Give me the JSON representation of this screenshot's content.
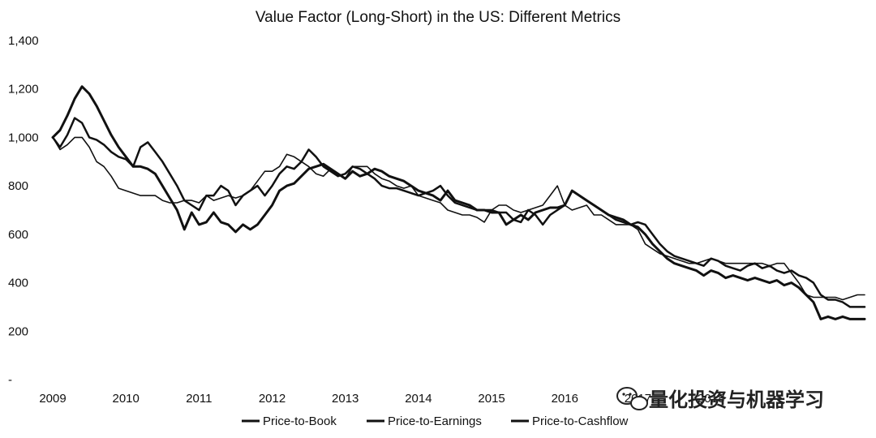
{
  "chart_data": {
    "type": "line",
    "title": "Value Factor (Long-Short) in the US: Different Metrics",
    "xlabel": "",
    "ylabel": "",
    "xlim": [
      2009,
      2020.1
    ],
    "ylim": [
      0,
      1400
    ],
    "yticks": [
      0,
      200,
      400,
      600,
      800,
      1000,
      1200,
      1400
    ],
    "ytick_labels": [
      "-",
      "200",
      "400",
      "600",
      "800",
      "1,000",
      "1,200",
      "1,400"
    ],
    "xticks": [
      2009,
      2010,
      2011,
      2012,
      2013,
      2014,
      2015,
      2016,
      2017,
      2018
    ],
    "xtick_labels": [
      "2009",
      "2010",
      "2011",
      "2012",
      "2013",
      "2014",
      "2015",
      "2016",
      "2017",
      "2018"
    ],
    "grid": false,
    "legend": "bottom",
    "series": [
      {
        "name": "Price-to-Book",
        "color": "#111111",
        "x": [
          2009,
          2009.1,
          2009.2,
          2009.3,
          2009.4,
          2009.5,
          2009.6,
          2009.7,
          2009.8,
          2009.9,
          2010,
          2010.1,
          2010.2,
          2010.3,
          2010.4,
          2010.5,
          2010.6,
          2010.7,
          2010.8,
          2010.9,
          2011,
          2011.1,
          2011.2,
          2011.3,
          2011.4,
          2011.5,
          2011.6,
          2011.7,
          2011.8,
          2011.9,
          2012,
          2012.1,
          2012.2,
          2012.3,
          2012.4,
          2012.5,
          2012.6,
          2012.7,
          2012.8,
          2012.9,
          2013,
          2013.1,
          2013.2,
          2013.3,
          2013.4,
          2013.5,
          2013.6,
          2013.7,
          2013.8,
          2013.9,
          2014,
          2014.1,
          2014.2,
          2014.3,
          2014.4,
          2014.5,
          2014.6,
          2014.7,
          2014.8,
          2014.9,
          2015,
          2015.1,
          2015.2,
          2015.3,
          2015.4,
          2015.5,
          2015.6,
          2015.7,
          2015.8,
          2015.9,
          2016,
          2016.1,
          2016.2,
          2016.3,
          2016.4,
          2016.5,
          2016.6,
          2016.7,
          2016.8,
          2016.9,
          2017,
          2017.1,
          2017.2,
          2017.3,
          2017.4,
          2017.5,
          2017.6,
          2017.7,
          2017.8,
          2017.9,
          2018,
          2018.1,
          2018.2,
          2018.3,
          2018.4,
          2018.5,
          2018.6,
          2018.7,
          2018.8,
          2018.9,
          2019,
          2019.1,
          2019.2,
          2019.3,
          2019.4,
          2019.5,
          2019.6,
          2019.7,
          2019.8,
          2019.9,
          2020,
          2020.1
        ],
        "values": [
          1000,
          1030,
          1090,
          1160,
          1210,
          1180,
          1130,
          1070,
          1010,
          960,
          920,
          880,
          880,
          870,
          850,
          800,
          750,
          700,
          620,
          690,
          640,
          650,
          690,
          650,
          640,
          610,
          640,
          620,
          640,
          680,
          720,
          780,
          800,
          810,
          840,
          870,
          880,
          890,
          870,
          850,
          830,
          860,
          840,
          850,
          870,
          860,
          840,
          830,
          820,
          800,
          780,
          770,
          760,
          740,
          780,
          740,
          730,
          720,
          700,
          700,
          690,
          690,
          640,
          660,
          680,
          660,
          690,
          700,
          710,
          710,
          720,
          780,
          760,
          740,
          720,
          700,
          680,
          670,
          660,
          640,
          630,
          600,
          560,
          530,
          500,
          480,
          470,
          460,
          450,
          430,
          450,
          440,
          420,
          430,
          420,
          410,
          420,
          410,
          400,
          410,
          390,
          400,
          380,
          350,
          320,
          250,
          260,
          250,
          260,
          250,
          250,
          250
        ]
      },
      {
        "name": "Price-to-Earnings",
        "color": "#111111",
        "x": [
          2009,
          2009.1,
          2009.2,
          2009.3,
          2009.4,
          2009.5,
          2009.6,
          2009.7,
          2009.8,
          2009.9,
          2010,
          2010.1,
          2010.2,
          2010.3,
          2010.4,
          2010.5,
          2010.6,
          2010.7,
          2010.8,
          2010.9,
          2011,
          2011.1,
          2011.2,
          2011.3,
          2011.4,
          2011.5,
          2011.6,
          2011.7,
          2011.8,
          2011.9,
          2012,
          2012.1,
          2012.2,
          2012.3,
          2012.4,
          2012.5,
          2012.6,
          2012.7,
          2012.8,
          2012.9,
          2013,
          2013.1,
          2013.2,
          2013.3,
          2013.4,
          2013.5,
          2013.6,
          2013.7,
          2013.8,
          2013.9,
          2014,
          2014.1,
          2014.2,
          2014.3,
          2014.4,
          2014.5,
          2014.6,
          2014.7,
          2014.8,
          2014.9,
          2015,
          2015.1,
          2015.2,
          2015.3,
          2015.4,
          2015.5,
          2015.6,
          2015.7,
          2015.8,
          2015.9,
          2016,
          2016.1,
          2016.2,
          2016.3,
          2016.4,
          2016.5,
          2016.6,
          2016.7,
          2016.8,
          2016.9,
          2017,
          2017.1,
          2017.2,
          2017.3,
          2017.4,
          2017.5,
          2017.6,
          2017.7,
          2017.8,
          2017.9,
          2018,
          2018.1,
          2018.2,
          2018.3,
          2018.4,
          2018.5,
          2018.6,
          2018.7,
          2018.8,
          2018.9,
          2019,
          2019.1,
          2019.2,
          2019.3,
          2019.4,
          2019.5,
          2019.6,
          2019.7,
          2019.8,
          2019.9,
          2020,
          2020.1
        ],
        "values": [
          1000,
          960,
          1010,
          1080,
          1060,
          1000,
          990,
          970,
          940,
          920,
          910,
          880,
          960,
          980,
          940,
          900,
          850,
          800,
          740,
          720,
          700,
          760,
          760,
          800,
          780,
          720,
          760,
          780,
          800,
          760,
          800,
          850,
          880,
          870,
          900,
          950,
          920,
          880,
          860,
          840,
          850,
          880,
          870,
          850,
          830,
          800,
          790,
          790,
          780,
          770,
          760,
          770,
          780,
          800,
          760,
          730,
          720,
          710,
          700,
          700,
          700,
          690,
          690,
          660,
          650,
          700,
          680,
          640,
          680,
          700,
          720,
          780,
          760,
          740,
          720,
          700,
          680,
          660,
          650,
          640,
          650,
          640,
          600,
          560,
          530,
          510,
          500,
          490,
          480,
          470,
          500,
          490,
          470,
          460,
          450,
          470,
          480,
          460,
          470,
          450,
          440,
          450,
          430,
          420,
          400,
          350,
          330,
          330,
          320,
          300,
          300,
          300
        ]
      },
      {
        "name": "Price-to-Cashflow",
        "color": "#111111",
        "x": [
          2009,
          2009.1,
          2009.2,
          2009.3,
          2009.4,
          2009.5,
          2009.6,
          2009.7,
          2009.8,
          2009.9,
          2010,
          2010.1,
          2010.2,
          2010.3,
          2010.4,
          2010.5,
          2010.6,
          2010.7,
          2010.8,
          2010.9,
          2011,
          2011.1,
          2011.2,
          2011.3,
          2011.4,
          2011.5,
          2011.6,
          2011.7,
          2011.8,
          2011.9,
          2012,
          2012.1,
          2012.2,
          2012.3,
          2012.4,
          2012.5,
          2012.6,
          2012.7,
          2012.8,
          2012.9,
          2013,
          2013.1,
          2013.2,
          2013.3,
          2013.4,
          2013.5,
          2013.6,
          2013.7,
          2013.8,
          2013.9,
          2014,
          2014.1,
          2014.2,
          2014.3,
          2014.4,
          2014.5,
          2014.6,
          2014.7,
          2014.8,
          2014.9,
          2015,
          2015.1,
          2015.2,
          2015.3,
          2015.4,
          2015.5,
          2015.6,
          2015.7,
          2015.8,
          2015.9,
          2016,
          2016.1,
          2016.2,
          2016.3,
          2016.4,
          2016.5,
          2016.6,
          2016.7,
          2016.8,
          2016.9,
          2017,
          2017.1,
          2017.2,
          2017.3,
          2017.4,
          2017.5,
          2017.6,
          2017.7,
          2017.8,
          2017.9,
          2018,
          2018.1,
          2018.2,
          2018.3,
          2018.4,
          2018.5,
          2018.6,
          2018.7,
          2018.8,
          2018.9,
          2019,
          2019.1,
          2019.2,
          2019.3,
          2019.4,
          2019.5,
          2019.6,
          2019.7,
          2019.8,
          2019.9,
          2020,
          2020.1
        ],
        "values": [
          1000,
          950,
          970,
          1000,
          1000,
          960,
          900,
          880,
          840,
          790,
          780,
          770,
          760,
          760,
          760,
          740,
          730,
          730,
          740,
          740,
          730,
          760,
          740,
          750,
          760,
          750,
          760,
          780,
          820,
          860,
          860,
          880,
          930,
          920,
          900,
          880,
          850,
          840,
          870,
          850,
          830,
          880,
          880,
          880,
          850,
          830,
          820,
          800,
          790,
          800,
          760,
          750,
          740,
          730,
          700,
          690,
          680,
          680,
          670,
          650,
          700,
          720,
          720,
          700,
          690,
          700,
          710,
          720,
          760,
          800,
          720,
          700,
          710,
          720,
          680,
          680,
          660,
          640,
          640,
          640,
          620,
          560,
          540,
          520,
          510,
          500,
          490,
          480,
          480,
          490,
          500,
          490,
          480,
          480,
          480,
          480,
          480,
          480,
          470,
          480,
          480,
          440,
          400,
          350,
          340,
          340,
          340,
          340,
          330,
          340,
          350,
          350
        ]
      }
    ]
  },
  "watermark": {
    "text": "量化投资与机器学习"
  },
  "icons": {
    "watermark_icon": "wechat-icon"
  }
}
